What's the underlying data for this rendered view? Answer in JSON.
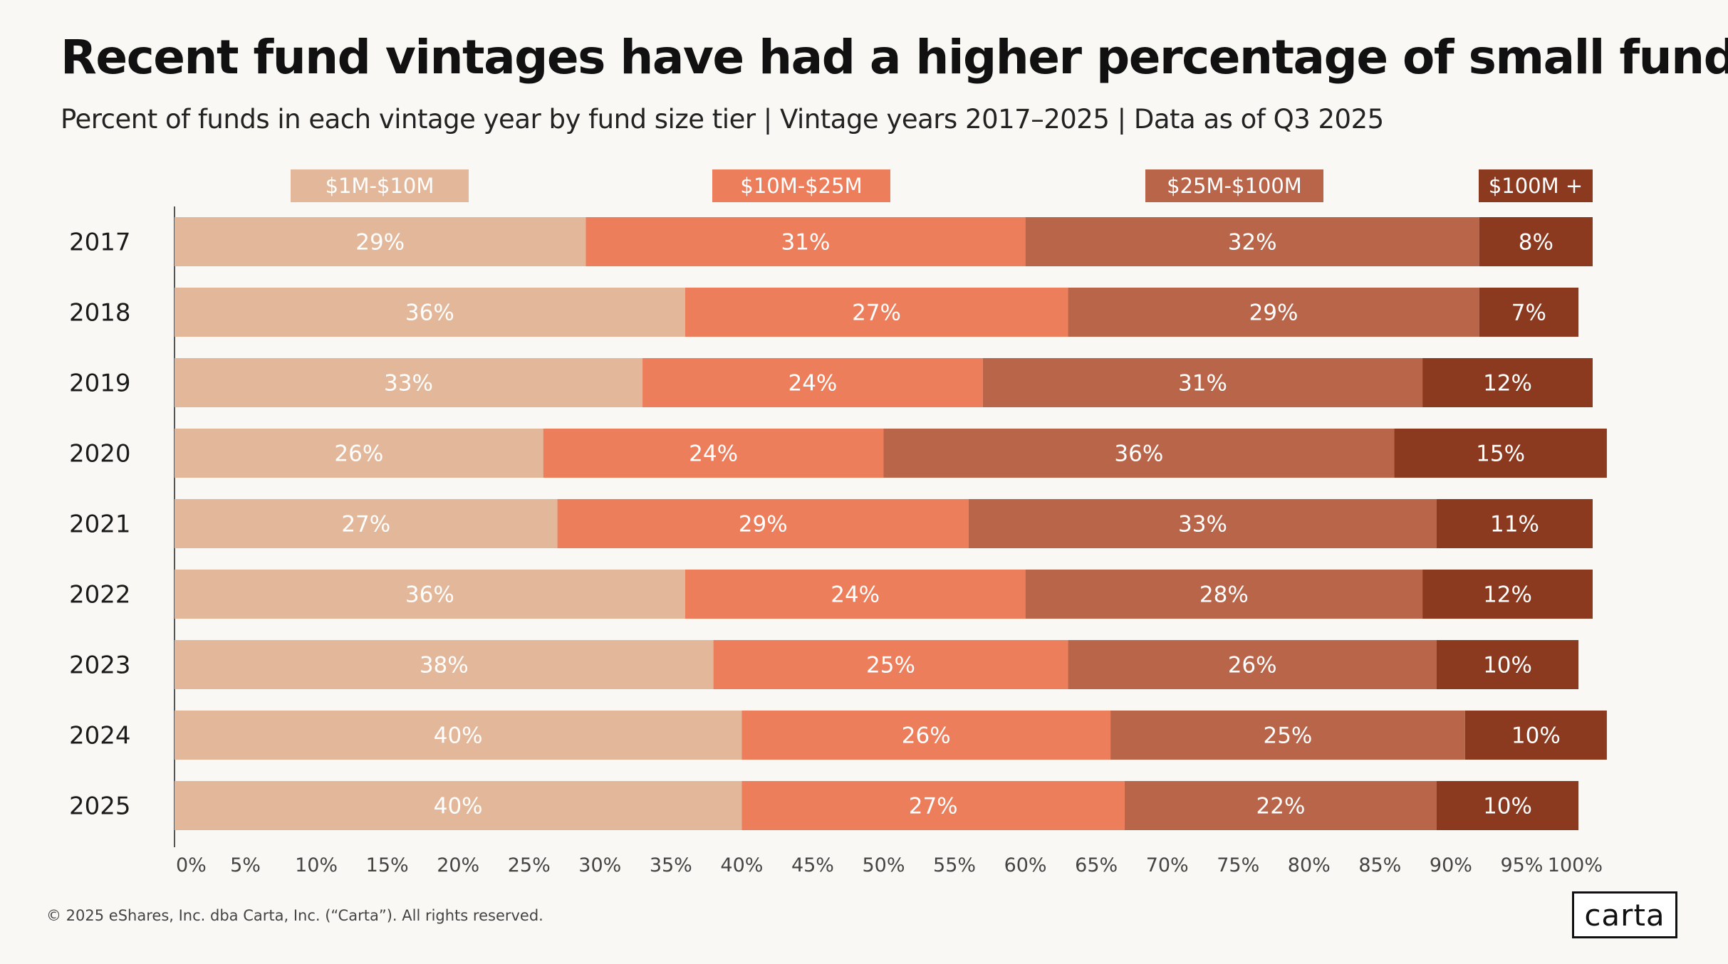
{
  "title": "Recent fund vintages have had a higher percentage of small funds",
  "subtitle": "Percent of funds in each vintage year by fund size tier | Vintage years 2017–2025 | Data as of Q3 2025",
  "footer": "© 2025 eShares, Inc. dba Carta, Inc. (“Carta”). All rights reserved.",
  "logo": "carta",
  "colors": {
    "background": "#faf8f4",
    "series": [
      "#e3b89a",
      "#ed7e5c",
      "#b9654a",
      "#8c3a1f"
    ],
    "label_text": "#ffffff"
  },
  "chart_data": {
    "type": "bar",
    "orientation": "horizontal",
    "stacked": true,
    "categories": [
      "2017",
      "2018",
      "2019",
      "2020",
      "2021",
      "2022",
      "2023",
      "2024",
      "2025"
    ],
    "series": [
      {
        "name": "$1M-$10M",
        "values": [
          29,
          36,
          33,
          26,
          27,
          36,
          38,
          40,
          40
        ]
      },
      {
        "name": "$10M-$25M",
        "values": [
          31,
          27,
          24,
          24,
          29,
          24,
          25,
          26,
          27
        ]
      },
      {
        "name": "$25M-$100M",
        "values": [
          32,
          29,
          31,
          36,
          33,
          28,
          26,
          25,
          22
        ]
      },
      {
        "name": "$100M +",
        "values": [
          8,
          7,
          12,
          15,
          11,
          12,
          10,
          10,
          10
        ]
      }
    ],
    "data_labels": [
      [
        "29%",
        "31%",
        "32%",
        "8%"
      ],
      [
        "36%",
        "27%",
        "29%",
        "7%"
      ],
      [
        "33%",
        "24%",
        "31%",
        "12%"
      ],
      [
        "26%",
        "24%",
        "36%",
        "15%"
      ],
      [
        "27%",
        "29%",
        "33%",
        "11%"
      ],
      [
        "36%",
        "24%",
        "28%",
        "12%"
      ],
      [
        "38%",
        "25%",
        "26%",
        "10%"
      ],
      [
        "40%",
        "26%",
        "25%",
        "10%"
      ],
      [
        "40%",
        "27%",
        "22%",
        "10%"
      ]
    ],
    "x_ticks": [
      "0%",
      "5%",
      "10%",
      "15%",
      "20%",
      "25%",
      "30%",
      "35%",
      "40%",
      "45%",
      "50%",
      "55%",
      "60%",
      "65%",
      "70%",
      "75%",
      "80%",
      "85%",
      "90%",
      "95%",
      "100%"
    ],
    "xlim": [
      0,
      100
    ],
    "legend_position": "top",
    "grid": false
  }
}
